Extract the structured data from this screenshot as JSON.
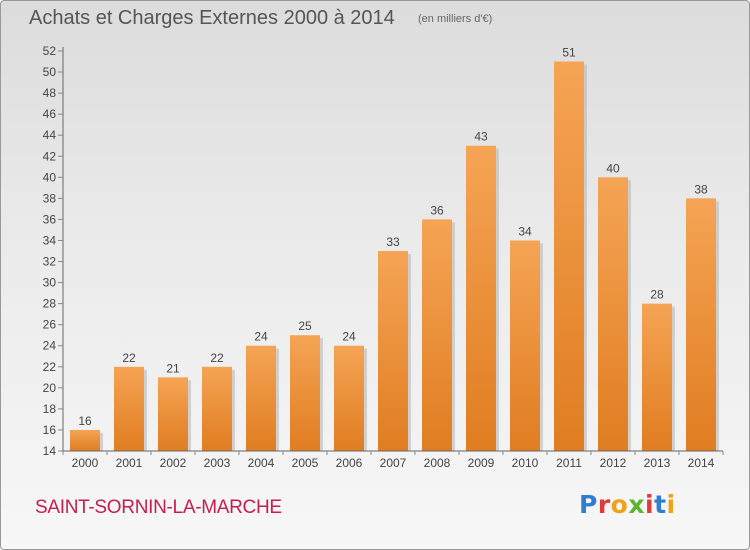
{
  "header": {
    "title": "Achats et Charges Externes 2000 à 2014",
    "unit": "(en milliers d'€)"
  },
  "footer": {
    "commune": "SAINT-SORNIN-LA-MARCHE",
    "logo_text": "Proxiti",
    "logo_colors": [
      "#2f7fd0",
      "#e23a3a",
      "#f0a019",
      "#5bb531",
      "#e23a3a",
      "#2f7fd0",
      "#f0a019"
    ]
  },
  "colors": {
    "bar_top": "#f5a455",
    "bar_bottom": "#e07d21",
    "bar_shadow": "#b9b9b9",
    "axis": "#666666",
    "grid_tick": "#888888",
    "text": "#444444"
  },
  "chart_data": {
    "type": "bar",
    "title": "Achats et Charges Externes 2000 à 2014",
    "subtitle": "(en milliers d'€)",
    "categories": [
      "2000",
      "2001",
      "2002",
      "2003",
      "2004",
      "2005",
      "2006",
      "2007",
      "2008",
      "2009",
      "2010",
      "2011",
      "2012",
      "2013",
      "2014"
    ],
    "values": [
      16,
      22,
      21,
      22,
      24,
      25,
      24,
      33,
      36,
      43,
      34,
      51,
      40,
      28,
      38
    ],
    "data_labels": [
      "16",
      "22",
      "21",
      "22",
      "24",
      "25",
      "24",
      "33",
      "36",
      "43",
      "34",
      "51",
      "40",
      "28",
      "38"
    ],
    "ylim": [
      14,
      52
    ],
    "yticks": [
      14,
      16,
      18,
      20,
      22,
      24,
      26,
      28,
      30,
      32,
      34,
      36,
      38,
      40,
      42,
      44,
      46,
      48,
      50,
      52
    ],
    "grid": false,
    "legend": "none"
  }
}
